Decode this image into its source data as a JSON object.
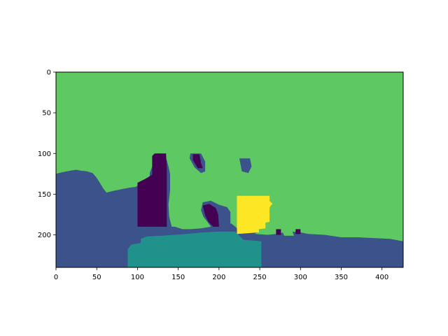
{
  "chart_data": {
    "type": "heatmap",
    "title": "",
    "xlabel": "",
    "ylabel": "",
    "image_width": 426,
    "image_height": 240,
    "xlim": [
      0,
      426
    ],
    "ylim": [
      240,
      0
    ],
    "x_ticks": [
      0,
      50,
      100,
      150,
      200,
      250,
      300,
      350,
      400
    ],
    "y_ticks": [
      0,
      50,
      100,
      150,
      200
    ],
    "colormap": "viridis",
    "classes": [
      {
        "id": 0,
        "color": "#440154"
      },
      {
        "id": 1,
        "color": "#3b528b"
      },
      {
        "id": 2,
        "color": "#21918c"
      },
      {
        "id": 3,
        "color": "#5ec962"
      },
      {
        "id": 4,
        "color": "#fde725"
      }
    ],
    "background_class": 3,
    "regions": [
      {
        "class": 1,
        "points": [
          [
            0,
            125
          ],
          [
            8,
            123
          ],
          [
            18,
            121
          ],
          [
            25,
            120
          ],
          [
            30,
            121
          ],
          [
            38,
            122
          ],
          [
            45,
            124
          ],
          [
            50,
            130
          ],
          [
            55,
            138
          ],
          [
            58,
            143
          ],
          [
            62,
            148
          ],
          [
            70,
            146
          ],
          [
            80,
            144
          ],
          [
            90,
            142
          ],
          [
            98,
            141
          ],
          [
            105,
            136
          ],
          [
            110,
            133
          ],
          [
            115,
            131
          ],
          [
            115,
            124
          ],
          [
            118,
            116
          ],
          [
            120,
            108
          ],
          [
            124,
            100
          ],
          [
            128,
            100
          ],
          [
            130,
            103
          ],
          [
            136,
            108
          ],
          [
            138,
            116
          ],
          [
            140,
            125
          ],
          [
            140,
            145
          ],
          [
            138,
            163
          ],
          [
            139,
            178
          ],
          [
            142,
            190
          ],
          [
            146,
            190
          ],
          [
            155,
            193
          ],
          [
            165,
            193
          ],
          [
            178,
            192
          ],
          [
            190,
            190
          ],
          [
            200,
            189
          ],
          [
            210,
            188
          ],
          [
            215,
            186
          ],
          [
            220,
            190
          ],
          [
            226,
            196
          ],
          [
            235,
            198
          ],
          [
            245,
            199
          ],
          [
            260,
            200
          ],
          [
            270,
            199
          ],
          [
            280,
            197
          ],
          [
            290,
            196
          ],
          [
            300,
            197
          ],
          [
            310,
            199
          ],
          [
            330,
            200
          ],
          [
            350,
            203
          ],
          [
            370,
            203
          ],
          [
            390,
            204
          ],
          [
            410,
            205
          ],
          [
            426,
            208
          ],
          [
            426,
            240
          ],
          [
            0,
            240
          ]
        ]
      },
      {
        "class": 1,
        "points": [
          [
            180,
            160
          ],
          [
            190,
            158
          ],
          [
            200,
            163
          ],
          [
            210,
            166
          ],
          [
            214,
            172
          ],
          [
            214,
            190
          ],
          [
            204,
            191
          ],
          [
            195,
            192
          ],
          [
            190,
            190
          ],
          [
            185,
            183
          ],
          [
            181,
            178
          ],
          [
            178,
            170
          ]
        ]
      },
      {
        "class": 1,
        "points": [
          [
            165,
            100
          ],
          [
            178,
            100
          ],
          [
            183,
            110
          ],
          [
            183,
            122
          ],
          [
            178,
            124
          ],
          [
            170,
            117
          ],
          [
            164,
            106
          ]
        ]
      },
      {
        "class": 1,
        "points": [
          [
            224,
            193
          ],
          [
            234,
            190
          ],
          [
            244,
            191
          ],
          [
            248,
            196
          ],
          [
            242,
            200
          ],
          [
            230,
            201
          ]
        ]
      },
      {
        "class": 1,
        "points": [
          [
            225,
            106
          ],
          [
            238,
            106
          ],
          [
            240,
            116
          ],
          [
            236,
            124
          ],
          [
            228,
            122
          ]
        ]
      },
      {
        "class": 2,
        "points": [
          [
            88,
            218
          ],
          [
            92,
            212
          ],
          [
            98,
            211
          ],
          [
            104,
            210
          ],
          [
            104,
            205
          ],
          [
            112,
            202
          ],
          [
            130,
            201
          ],
          [
            145,
            200
          ],
          [
            160,
            199
          ],
          [
            180,
            197
          ],
          [
            200,
            196
          ],
          [
            220,
            196
          ],
          [
            230,
            206
          ],
          [
            252,
            208
          ],
          [
            252,
            240
          ],
          [
            88,
            240
          ]
        ]
      },
      {
        "class": 0,
        "points": [
          [
            100,
            136
          ],
          [
            110,
            131
          ],
          [
            118,
            126
          ],
          [
            118,
            103
          ],
          [
            121,
            100
          ],
          [
            135,
            100
          ],
          [
            136,
            118
          ],
          [
            136,
            140
          ],
          [
            136,
            190
          ],
          [
            100,
            190
          ]
        ]
      },
      {
        "class": 0,
        "points": [
          [
            180,
            164
          ],
          [
            188,
            162
          ],
          [
            196,
            167
          ],
          [
            199,
            175
          ],
          [
            200,
            190
          ],
          [
            193,
            190
          ],
          [
            187,
            184
          ],
          [
            183,
            176
          ]
        ]
      },
      {
        "class": 0,
        "points": [
          [
            168,
            101
          ],
          [
            176,
            101
          ],
          [
            178,
            112
          ],
          [
            180,
            118
          ],
          [
            174,
            118
          ],
          [
            168,
            108
          ]
        ]
      },
      {
        "class": 4,
        "points": [
          [
            222,
            152
          ],
          [
            262,
            152
          ],
          [
            262,
            158
          ],
          [
            265,
            161
          ],
          [
            262,
            167
          ],
          [
            262,
            184
          ],
          [
            257,
            185
          ],
          [
            257,
            192
          ],
          [
            249,
            193
          ],
          [
            249,
            197
          ],
          [
            234,
            198
          ],
          [
            222,
            199
          ]
        ]
      },
      {
        "class": 4,
        "points": [
          [
            262,
            160
          ],
          [
            266,
            162
          ],
          [
            262,
            165
          ]
        ]
      },
      {
        "class": 0,
        "points": [
          [
            270,
            193
          ],
          [
            276,
            193
          ],
          [
            276,
            200
          ],
          [
            270,
            200
          ]
        ]
      },
      {
        "class": 0,
        "points": [
          [
            294,
            193
          ],
          [
            300,
            193
          ],
          [
            300,
            199
          ],
          [
            294,
            199
          ]
        ]
      },
      {
        "class": 3,
        "points": [
          [
            278,
            196
          ],
          [
            290,
            196
          ],
          [
            292,
            201
          ],
          [
            280,
            201
          ]
        ]
      }
    ]
  }
}
